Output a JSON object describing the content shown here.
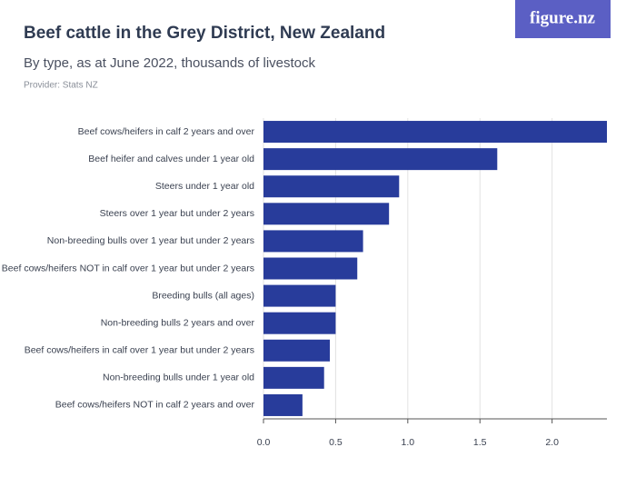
{
  "chart_data": {
    "type": "hbar",
    "logo": "figure.nz",
    "title": "Beef cattle in the Grey District, New Zealand",
    "subtitle": "By type, as at June 2022, thousands of livestock",
    "provider": "Provider: Stats NZ",
    "categories": [
      "Beef cows/heifers in calf 2 years and over",
      "Beef heifer and calves under 1 year old",
      "Steers under 1 year old",
      "Steers over 1 year but under 2 years",
      "Non-breeding bulls over 1 year but under 2 years",
      "Beef cows/heifers NOT in calf over 1 year but under 2 years",
      "Breeding bulls (all ages)",
      "Non-breeding bulls 2 years and over",
      "Beef cows/heifers in calf over 1 year but under 2 years",
      "Non-breeding bulls under 1 year old",
      "Beef cows/heifers NOT in calf 2 years and over"
    ],
    "values": [
      2.38,
      1.62,
      0.94,
      0.87,
      0.69,
      0.65,
      0.5,
      0.5,
      0.46,
      0.42,
      0.27
    ],
    "color": "#283c9b",
    "xlim": [
      0,
      2.38
    ],
    "xticks": [
      {
        "value": 0,
        "label": "0.0"
      },
      0.5,
      {
        "value": 1,
        "label": "1.0"
      },
      1.5,
      {
        "value": 2,
        "label": "2.0"
      }
    ],
    "grid": true
  }
}
